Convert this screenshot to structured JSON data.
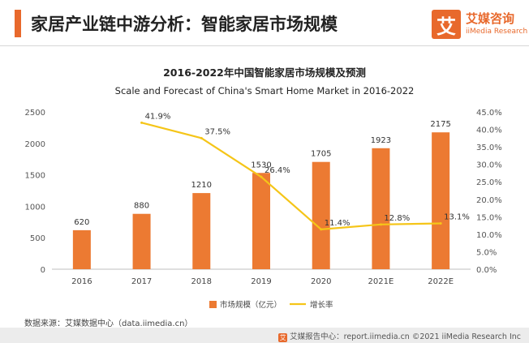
{
  "header": {
    "title": "家居产业链中游分析：智能家居市场规模"
  },
  "logo": {
    "mark": "艾",
    "name_cn": "艾媒咨询",
    "name_en": "iiMedia Research"
  },
  "source_note": "数据来源：艾媒数据中心（data.iimedia.cn）",
  "footer": {
    "text": "艾媒报告中心：report.iimedia.cn   ©2021  iiMedia Research  Inc"
  },
  "colors": {
    "bar": "#ec7a32",
    "line": "#f5c518",
    "accent": "#e8692c"
  },
  "chart_data": {
    "type": "bar",
    "title": "2016-2022年中国智能家居市场规模及预测",
    "subtitle": "Scale and Forecast of China's Smart Home Market in 2016-2022",
    "categories": [
      "2016",
      "2017",
      "2018",
      "2019",
      "2020",
      "2021E",
      "2022E"
    ],
    "series": [
      {
        "name": "市场规模（亿元）",
        "type": "bar",
        "axis": "left",
        "values": [
          620,
          880,
          1210,
          1530,
          1705,
          1923,
          2175
        ],
        "labels": [
          "620",
          "880",
          "1210",
          "1530",
          "1705",
          "1923",
          "2175"
        ]
      },
      {
        "name": "增长率",
        "type": "line",
        "axis": "right",
        "values": [
          null,
          41.9,
          37.5,
          26.4,
          11.4,
          12.8,
          13.1
        ],
        "labels": [
          "",
          "41.9%",
          "37.5%",
          "26.4%",
          "11.4%",
          "12.8%",
          "13.1%"
        ]
      }
    ],
    "y_left": {
      "min": 0,
      "max": 2500,
      "ticks": [
        0,
        500,
        1000,
        1500,
        2000,
        2500
      ],
      "tick_labels": [
        "0",
        "500",
        "1000",
        "1500",
        "2000",
        "2500"
      ]
    },
    "y_right": {
      "min": 0,
      "max": 45,
      "ticks": [
        0,
        5,
        10,
        15,
        20,
        25,
        30,
        35,
        40,
        45
      ],
      "tick_labels": [
        "0.0%",
        "5.0%",
        "10.0%",
        "15.0%",
        "20.0%",
        "25.0%",
        "30.0%",
        "35.0%",
        "40.0%",
        "45.0%"
      ]
    },
    "grid": false,
    "legend": "bottom-center"
  }
}
